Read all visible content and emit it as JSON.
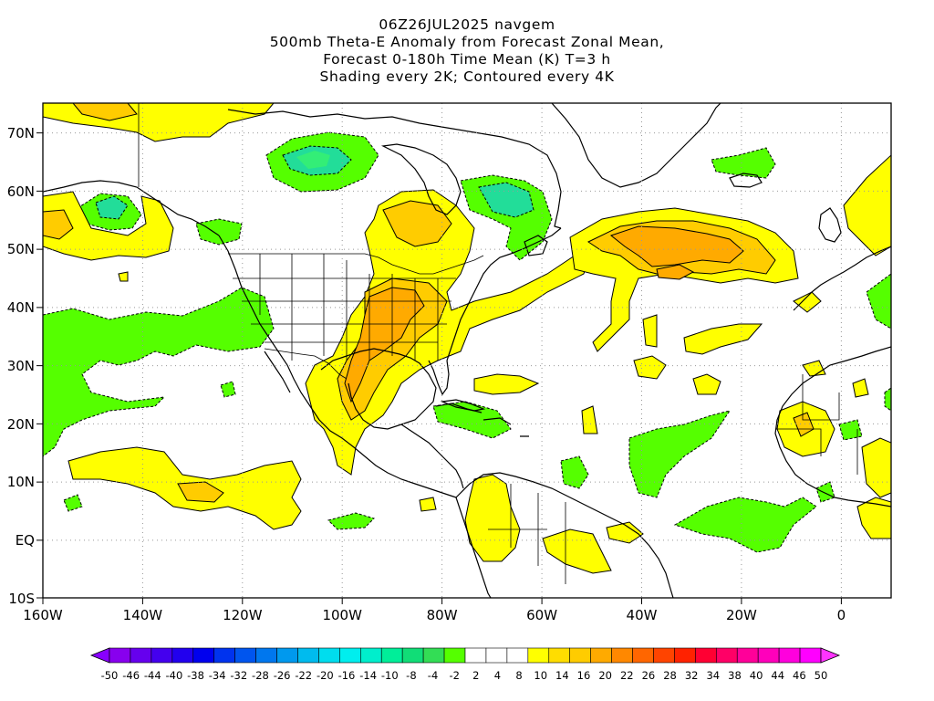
{
  "title": {
    "line1": "06Z26JUL2025 navgem",
    "line2": "500mb Theta-E Anomaly from Forecast Zonal Mean,",
    "line3": "Forecast 0-180h Time Mean (K) T=3 h",
    "line4": "Shading every 2K; Contoured every 4K"
  },
  "map": {
    "lon_ticks": [
      "160W",
      "140W",
      "120W",
      "100W",
      "80W",
      "60W",
      "40W",
      "20W",
      "0"
    ],
    "lat_ticks": [
      "70N",
      "60N",
      "50N",
      "40N",
      "30N",
      "20N",
      "10N",
      "EQ",
      "10S"
    ],
    "lon_range": [
      -160,
      10
    ],
    "lat_range": [
      -10,
      75
    ],
    "colors": {
      "light_green": "#55ff00",
      "med_green": "#33dd55",
      "teal_green": "#22dd99",
      "yellow": "#ffff00",
      "gold": "#ffcc00",
      "orange": "#ffaa00",
      "land_outline": "#000000"
    }
  },
  "colorbar": {
    "labels": [
      "-50",
      "-46",
      "-44",
      "-40",
      "-38",
      "-34",
      "-32",
      "-28",
      "-26",
      "-22",
      "-20",
      "-16",
      "-14",
      "-10",
      "-8",
      "-4",
      "-2",
      "2",
      "4",
      "8",
      "10",
      "14",
      "16",
      "20",
      "22",
      "26",
      "28",
      "32",
      "34",
      "38",
      "40",
      "44",
      "46",
      "50"
    ],
    "colors": [
      "#8800ee",
      "#6600ee",
      "#4400ee",
      "#2200ee",
      "#0000ee",
      "#0033ee",
      "#0055ee",
      "#0077ee",
      "#0099ee",
      "#00bbee",
      "#00ddee",
      "#00eeee",
      "#00eecc",
      "#00ee99",
      "#11dd77",
      "#33dd55",
      "#55ff00",
      "#ffffff",
      "#ffffff",
      "#ffffff",
      "#ffff00",
      "#ffdd00",
      "#ffcc00",
      "#ffaa00",
      "#ff8800",
      "#ff6600",
      "#ff4400",
      "#ff2200",
      "#ff0033",
      "#ff0066",
      "#ff0099",
      "#ff00bb",
      "#ff00dd",
      "#ff00ff"
    ],
    "left_arrow_color": "#8800ff",
    "right_arrow_color": "#ff33ff"
  }
}
